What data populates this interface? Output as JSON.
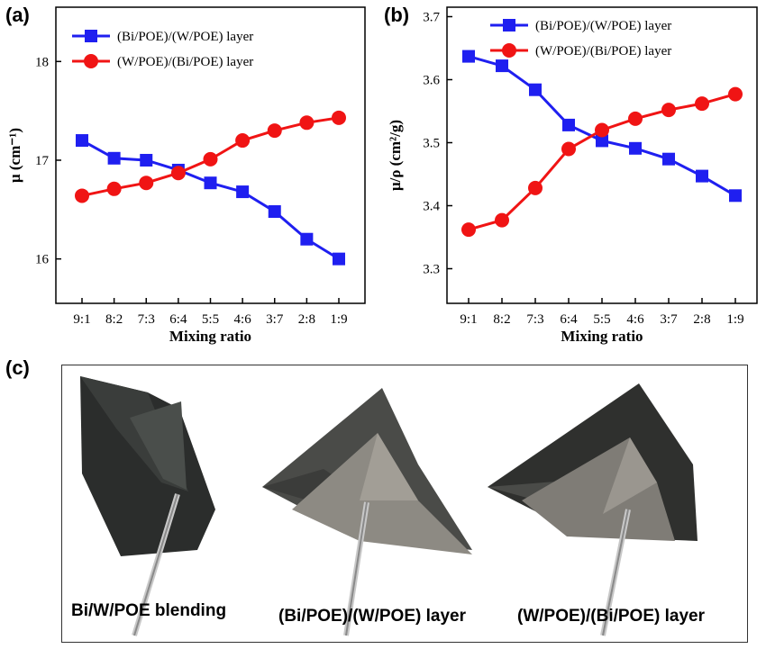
{
  "labels": {
    "a": "(a)",
    "b": "(b)",
    "c": "(c)"
  },
  "colors": {
    "blue": "#1f1ff0",
    "red": "#f01414",
    "axis": "#000000"
  },
  "chart_data": [
    {
      "type": "line",
      "xlabel": "Mixing ratio",
      "ylabel": "μ (cm⁻¹)",
      "categories": [
        "9:1",
        "8:2",
        "7:3",
        "6:4",
        "5:5",
        "4:6",
        "3:7",
        "2:8",
        "1:9"
      ],
      "ylim": [
        15.55,
        18.55
      ],
      "yticks": [
        16,
        17,
        18
      ],
      "ytick_labels": [
        "16",
        "17",
        "18"
      ],
      "grid": false,
      "legend_position": "top",
      "series": [
        {
          "name": "(Bi/POE)/(W/POE) layer",
          "marker": "square",
          "color": "#1f1ff0",
          "values": [
            17.2,
            17.02,
            17.0,
            16.9,
            16.77,
            16.68,
            16.48,
            16.2,
            16.0
          ]
        },
        {
          "name": "(W/POE)/(Bi/POE) layer",
          "marker": "circle",
          "color": "#f01414",
          "values": [
            16.64,
            16.71,
            16.77,
            16.87,
            17.01,
            17.2,
            17.3,
            17.38,
            17.43
          ]
        }
      ]
    },
    {
      "type": "line",
      "xlabel": "Mixing ratio",
      "ylabel": "μ/ρ (cm²/g)",
      "categories": [
        "9:1",
        "8:2",
        "7:3",
        "6:4",
        "5:5",
        "4:6",
        "3:7",
        "2:8",
        "1:9"
      ],
      "ylim": [
        3.245,
        3.715
      ],
      "yticks": [
        3.3,
        3.4,
        3.5,
        3.6,
        3.7
      ],
      "ytick_labels": [
        "3.3",
        "3.4",
        "3.5",
        "3.6",
        "3.7"
      ],
      "grid": false,
      "legend_position": "top",
      "series": [
        {
          "name": "(Bi/POE)/(W/POE) layer",
          "marker": "square",
          "color": "#1f1ff0",
          "values": [
            3.637,
            3.622,
            3.584,
            3.528,
            3.503,
            3.491,
            3.474,
            3.447,
            3.416
          ]
        },
        {
          "name": "(W/POE)/(Bi/POE) layer",
          "marker": "circle",
          "color": "#f01414",
          "values": [
            3.362,
            3.377,
            3.428,
            3.49,
            3.52,
            3.538,
            3.552,
            3.562,
            3.577
          ]
        }
      ]
    }
  ],
  "photos": [
    {
      "caption": "Bi/W/POE blending"
    },
    {
      "caption": "(Bi/POE)/(W/POE) layer"
    },
    {
      "caption": "(W/POE)/(Bi/POE) layer"
    }
  ]
}
